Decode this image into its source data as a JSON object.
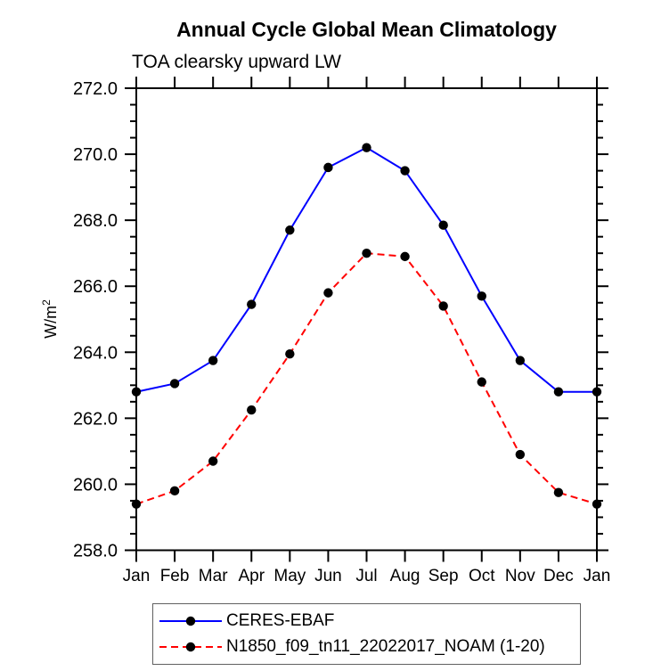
{
  "chart_data": {
    "type": "line",
    "title": "Annual Cycle Global Mean Climatology",
    "subtitle": "TOA clearsky upward LW",
    "ylabel": "W/m^2",
    "categories": [
      "Jan",
      "Feb",
      "Mar",
      "Apr",
      "May",
      "Jun",
      "Jul",
      "Aug",
      "Sep",
      "Oct",
      "Nov",
      "Dec",
      "Jan"
    ],
    "ylim": [
      258.0,
      272.0
    ],
    "ytick_interval": 2.0,
    "y_minor_interval": 0.5,
    "ytick_labels": [
      "258.0",
      "260.0",
      "262.0",
      "264.0",
      "266.0",
      "268.0",
      "270.0",
      "272.0"
    ],
    "grid": false,
    "legend_position": "bottom",
    "axis_color": "#000000",
    "series": [
      {
        "name": "CERES-EBAF",
        "color": "#0000ff",
        "style": "solid",
        "marker": "filled-circle",
        "marker_color": "#000000",
        "values": [
          262.8,
          263.05,
          263.75,
          265.45,
          267.7,
          269.6,
          270.2,
          269.5,
          267.85,
          265.7,
          263.75,
          262.8,
          262.8
        ]
      },
      {
        "name": "N1850_f09_tn11_22022017_NOAM (1-20)",
        "color": "#ff0000",
        "style": "dashed",
        "marker": "filled-circle",
        "marker_color": "#000000",
        "values": [
          259.4,
          259.8,
          260.7,
          262.25,
          263.95,
          265.8,
          267.0,
          266.9,
          265.4,
          263.1,
          260.9,
          259.75,
          259.4
        ]
      }
    ]
  },
  "y_axis": {
    "label_base": "W/m",
    "label_exponent": "2"
  }
}
